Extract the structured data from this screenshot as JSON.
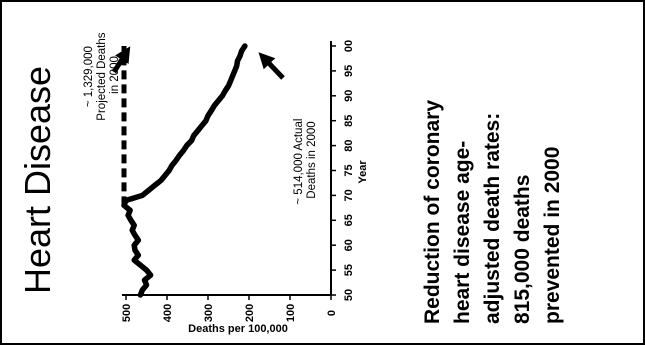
{
  "slide": {
    "title": "Heart Disease",
    "headline_lines": [
      "Reduction of coronary",
      "heart disease age-",
      "adjusted death rates:",
      "815,000 deaths",
      "prevented in 2000"
    ]
  },
  "chart_data": {
    "type": "line",
    "title": "Heart Disease",
    "xlabel": "Year",
    "ylabel": "Deaths per 100,000",
    "xlim": [
      1950,
      2000
    ],
    "ylim": [
      0,
      520
    ],
    "x_ticks": [
      {
        "value": 1950,
        "label": "50"
      },
      {
        "value": 1955,
        "label": "55"
      },
      {
        "value": 1960,
        "label": "60"
      },
      {
        "value": 1965,
        "label": "65"
      },
      {
        "value": 1970,
        "label": "70"
      },
      {
        "value": 1975,
        "label": "75"
      },
      {
        "value": 1980,
        "label": "80"
      },
      {
        "value": 1985,
        "label": "85"
      },
      {
        "value": 1990,
        "label": "90"
      },
      {
        "value": 1995,
        "label": "95"
      },
      {
        "value": 2000,
        "label": "00"
      }
    ],
    "y_ticks": [
      {
        "value": 0,
        "label": "0"
      },
      {
        "value": 100,
        "label": "100"
      },
      {
        "value": 200,
        "label": "200"
      },
      {
        "value": 300,
        "label": "300"
      },
      {
        "value": 400,
        "label": "400"
      },
      {
        "value": 500,
        "label": "500"
      }
    ],
    "series": [
      {
        "kind": "actual",
        "color": "#000000",
        "x": [
          1950,
          1951,
          1952,
          1953,
          1954,
          1955,
          1956,
          1957,
          1958,
          1959,
          1960,
          1961,
          1962,
          1963,
          1964,
          1965,
          1966,
          1967,
          1968,
          1969,
          1970,
          1971,
          1972,
          1973,
          1974,
          1975,
          1976,
          1977,
          1978,
          1979,
          1980,
          1981,
          1982,
          1983,
          1984,
          1985,
          1986,
          1987,
          1988,
          1989,
          1990,
          1991,
          1992,
          1993,
          1994,
          1995,
          1996,
          1997,
          1998,
          1999,
          2000
        ],
        "y": [
          465,
          460,
          450,
          455,
          440,
          450,
          465,
          480,
          470,
          478,
          480,
          470,
          478,
          485,
          480,
          488,
          495,
          490,
          505,
          500,
          460,
          445,
          430,
          415,
          405,
          395,
          388,
          378,
          370,
          360,
          352,
          340,
          335,
          325,
          315,
          305,
          300,
          292,
          285,
          275,
          265,
          258,
          250,
          245,
          240,
          235,
          230,
          228,
          222,
          218,
          210
        ]
      },
      {
        "kind": "projected",
        "color": "#000000",
        "style": "dashed",
        "x": [
          1968,
          2000
        ],
        "y": [
          505,
          505
        ]
      }
    ],
    "annotations": [
      {
        "lines": [
          "~ 1,329,000",
          "Projected Deaths",
          "in 2000"
        ]
      },
      {
        "lines": [
          "~ 514,000 Actual",
          "Deaths in 2000"
        ]
      }
    ]
  }
}
